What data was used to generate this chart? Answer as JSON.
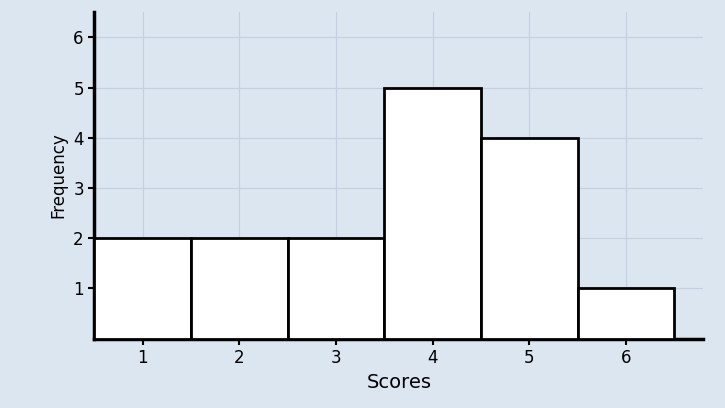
{
  "scores": [
    1,
    2,
    3,
    4,
    5,
    6
  ],
  "frequencies": [
    2,
    2,
    2,
    5,
    4,
    1
  ],
  "bar_color": "#ffffff",
  "bar_edgecolor": "#000000",
  "bar_linewidth": 2.0,
  "background_color": "#dce6f1",
  "xlabel": "Scores",
  "ylabel": "Frequency",
  "xlabel_fontsize": 14,
  "ylabel_fontsize": 12,
  "xtick_fontsize": 12,
  "ytick_fontsize": 12,
  "yticks": [
    1,
    2,
    3,
    4,
    5,
    6
  ],
  "xticks": [
    1,
    2,
    3,
    4,
    5,
    6
  ],
  "ylim": [
    0,
    6.5
  ],
  "xlim": [
    0.5,
    6.8
  ],
  "grid_color": "#c5cfe0",
  "grid_linewidth": 0.8,
  "spine_linewidth": 2.5
}
